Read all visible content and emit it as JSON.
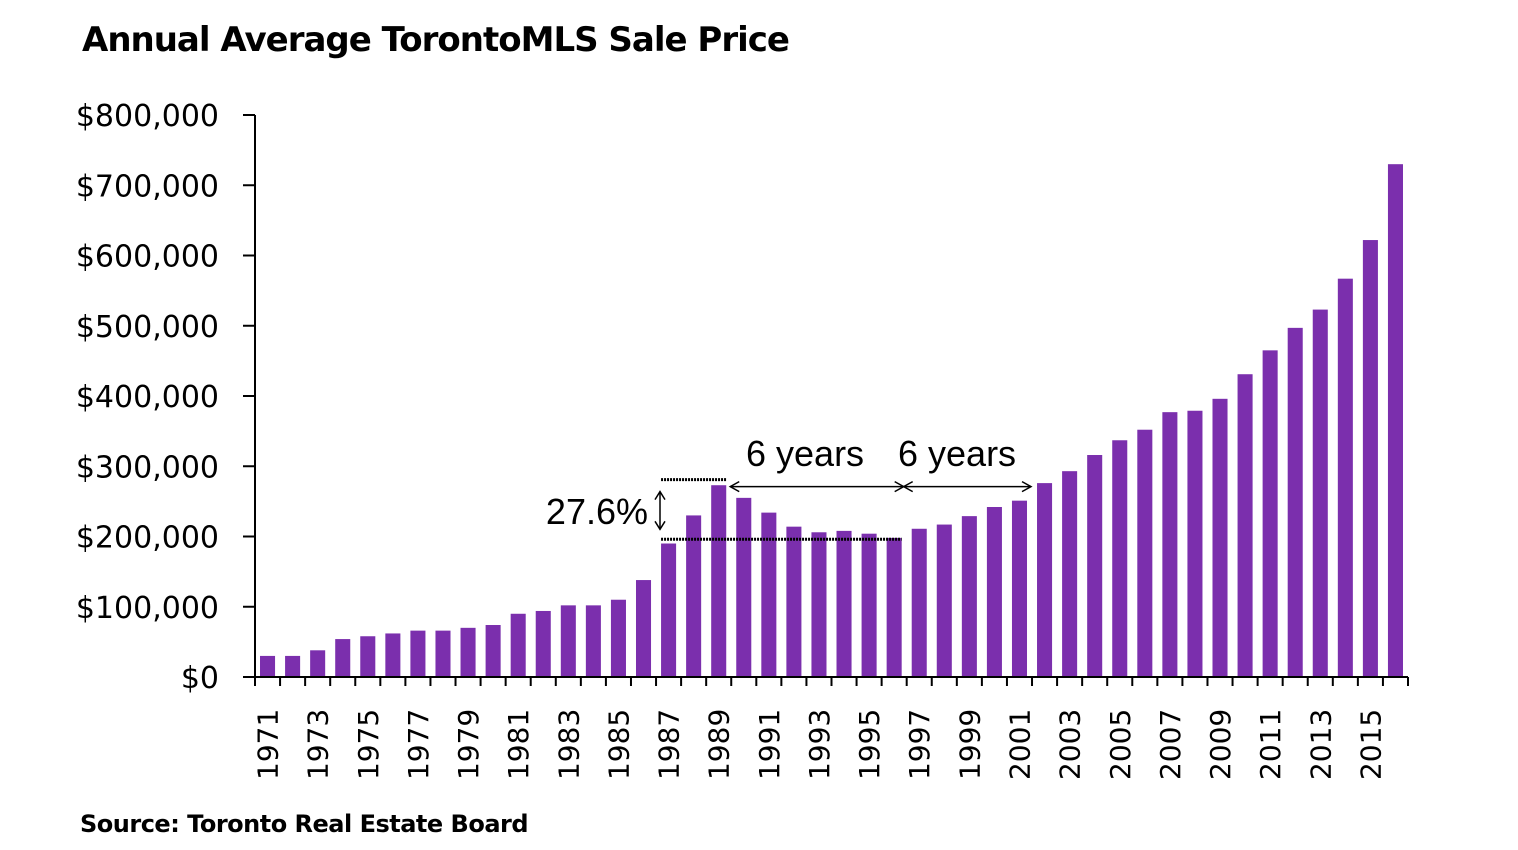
{
  "chart_data": {
    "type": "bar",
    "title": "Annual Average TorontoMLS Sale Price",
    "source": "Source: Toronto Real Estate Board",
    "xlabel": "",
    "ylabel": "",
    "ylim": [
      0,
      800000
    ],
    "y_ticks": [
      0,
      100000,
      200000,
      300000,
      400000,
      500000,
      600000,
      700000,
      800000
    ],
    "y_tick_labels": [
      "$0",
      "$100,000",
      "$200,000",
      "$300,000",
      "$400,000",
      "$500,000",
      "$600,000",
      "$700,000",
      "$800,000"
    ],
    "x_tick_labels": [
      "1971",
      "1973",
      "1975",
      "1977",
      "1979",
      "1981",
      "1983",
      "1985",
      "1987",
      "1989",
      "1991",
      "1993",
      "1995",
      "1997",
      "1999",
      "2001",
      "2003",
      "2005",
      "2007",
      "2009",
      "2011",
      "2013",
      "2015"
    ],
    "bar_color": "#7B2FAD",
    "grid": false,
    "legend": "none",
    "categories": [
      "1971",
      "1972",
      "1973",
      "1974",
      "1975",
      "1976",
      "1977",
      "1978",
      "1979",
      "1980",
      "1981",
      "1982",
      "1983",
      "1984",
      "1985",
      "1986",
      "1987",
      "1988",
      "1989",
      "1990",
      "1991",
      "1992",
      "1993",
      "1994",
      "1995",
      "1996",
      "1997",
      "1998",
      "1999",
      "2000",
      "2001",
      "2002",
      "2003",
      "2004",
      "2005",
      "2006",
      "2007",
      "2008",
      "2009",
      "2010",
      "2011",
      "2012",
      "2013",
      "2014",
      "2015",
      "2016"
    ],
    "values": [
      30000,
      30000,
      38000,
      54000,
      58000,
      62000,
      66000,
      66000,
      70000,
      74000,
      90000,
      94000,
      102000,
      102000,
      110000,
      138000,
      190000,
      230000,
      273000,
      255000,
      234000,
      214000,
      206000,
      208000,
      204000,
      198000,
      211000,
      217000,
      229000,
      242000,
      251000,
      276000,
      293000,
      316000,
      337000,
      352000,
      377000,
      379000,
      396000,
      431000,
      465000,
      497000,
      523000,
      567000,
      622000,
      730000
    ],
    "annotations": {
      "pct_label": "27.6%",
      "years_label_1": "6 years",
      "years_label_2": "6 years",
      "peak_year": "1989",
      "trough_year": "1996",
      "recovery_year": "2002",
      "peak_level": 281000,
      "trough_level": 196000,
      "arrow_level": 271000
    }
  }
}
